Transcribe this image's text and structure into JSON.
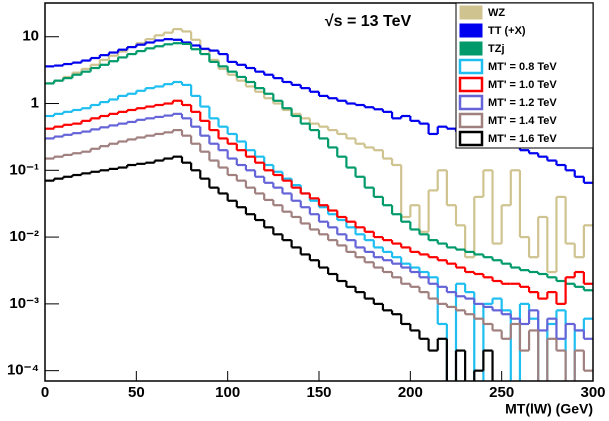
{
  "chart_data": {
    "type": "histogram",
    "annotation": "√s = 13 TeV",
    "x_label": "MT(lW) (GeV)",
    "bins": [
      0,
      5,
      10,
      15,
      20,
      25,
      30,
      35,
      40,
      45,
      50,
      55,
      60,
      65,
      70,
      75,
      80,
      85,
      90,
      95,
      100,
      105,
      110,
      115,
      120,
      125,
      130,
      135,
      140,
      145,
      150,
      155,
      160,
      165,
      170,
      175,
      180,
      185,
      190,
      195,
      200,
      205,
      210,
      215,
      220,
      225,
      230,
      235,
      240,
      245,
      250,
      255,
      260,
      265,
      270,
      275,
      280,
      285,
      290,
      295,
      300
    ],
    "xlim": [
      0,
      300
    ],
    "xticks": [
      0,
      50,
      100,
      150,
      200,
      250,
      300
    ],
    "ylim": [
      7e-05,
      32
    ],
    "yscale": "log",
    "yticks": [
      {
        "value": 0.0001,
        "label": "10⁻⁴"
      },
      {
        "value": 0.001,
        "label": "10⁻³"
      },
      {
        "value": 0.01,
        "label": "10⁻²"
      },
      {
        "value": 0.1,
        "label": "10⁻¹"
      },
      1,
      10
    ],
    "legend": "upper right",
    "series": [
      {
        "name": "WZ",
        "color": "#cfc38f",
        "legend_marker": "filled",
        "values": [
          2.0,
          2.2,
          2.5,
          2.9,
          3.3,
          3.8,
          4.5,
          5.2,
          6.0,
          7.0,
          8.0,
          9.2,
          10.5,
          11.5,
          13.0,
          12.0,
          9.0,
          6.5,
          4.5,
          3.3,
          2.7,
          2.2,
          1.8,
          1.5,
          1.2,
          1.0,
          0.8,
          0.7,
          0.6,
          0.5,
          0.45,
          0.4,
          0.35,
          0.3,
          0.25,
          0.22,
          0.2,
          0.15,
          0.12,
          0.02,
          0.03,
          0.012,
          0.05,
          0.1,
          0.03,
          0.015,
          0.005,
          0.04,
          0.1,
          0.008,
          0.03,
          0.1,
          0.01,
          0.005,
          0.02,
          0.003,
          0.04,
          0.008,
          0.005,
          0.015
        ]
      },
      {
        "name": "TT (+X)",
        "color": "#0000ee",
        "legend_marker": "filled",
        "values": [
          3.6,
          3.7,
          3.9,
          4.1,
          4.4,
          4.8,
          5.3,
          5.8,
          6.4,
          7.0,
          7.6,
          8.2,
          8.8,
          9.2,
          9.0,
          8.2,
          7.4,
          6.6,
          6.2,
          5.5,
          4.2,
          3.8,
          3.4,
          3.0,
          2.7,
          2.4,
          2.1,
          1.9,
          1.7,
          1.5,
          1.3,
          1.2,
          1.1,
          1.0,
          0.95,
          0.88,
          0.82,
          0.75,
          0.6,
          0.65,
          0.55,
          0.5,
          0.35,
          0.45,
          0.42,
          0.38,
          0.36,
          0.33,
          0.3,
          0.27,
          0.25,
          0.23,
          0.2,
          0.18,
          0.16,
          0.14,
          0.12,
          0.1,
          0.08,
          0.065
        ]
      },
      {
        "name": "TZj",
        "color": "#009a6a",
        "legend_marker": "filled",
        "values": [
          2.0,
          2.2,
          2.4,
          2.7,
          3.0,
          3.4,
          3.8,
          4.3,
          4.9,
          5.5,
          6.1,
          6.7,
          7.2,
          7.7,
          8.0,
          7.8,
          6.5,
          5.5,
          4.2,
          3.6,
          3.0,
          2.5,
          2.1,
          1.7,
          1.4,
          1.1,
          0.85,
          0.65,
          0.5,
          0.4,
          0.3,
          0.22,
          0.16,
          0.11,
          0.08,
          0.055,
          0.04,
          0.03,
          0.022,
          0.017,
          0.013,
          0.011,
          0.009,
          0.008,
          0.007,
          0.0065,
          0.006,
          0.0055,
          0.005,
          0.0045,
          0.004,
          0.0035,
          0.0032,
          0.003,
          0.0028,
          0.0025,
          0.0022,
          0.002,
          0.0018,
          0.0016
        ]
      },
      {
        "name": "MT' = 0.8 TeV",
        "color": "#1ebff0",
        "legend_marker": "outline",
        "values": [
          0.65,
          0.7,
          0.75,
          0.8,
          0.85,
          0.95,
          1.05,
          1.15,
          1.3,
          1.4,
          1.55,
          1.7,
          1.8,
          1.95,
          2.1,
          1.9,
          1.3,
          0.9,
          0.6,
          0.45,
          0.35,
          0.27,
          0.2,
          0.16,
          0.12,
          0.095,
          0.075,
          0.06,
          0.045,
          0.035,
          0.028,
          0.022,
          0.018,
          0.014,
          0.011,
          0.009,
          0.007,
          0.006,
          0.005,
          0.004,
          0.0035,
          0.003,
          0.0025,
          0.0005,
          0,
          0.002,
          0.0015,
          0,
          0.001,
          0.0012,
          0.0008,
          0,
          0.001,
          0.0006,
          0,
          0.0005,
          0.0008,
          0,
          0.0004,
          0.0006
        ]
      },
      {
        "name": "MT' = 1.0 TeV",
        "color": "#ff0000",
        "legend_marker": "outline",
        "values": [
          0.42,
          0.45,
          0.48,
          0.5,
          0.55,
          0.6,
          0.65,
          0.7,
          0.75,
          0.8,
          0.85,
          0.9,
          0.95,
          1.0,
          1.1,
          0.95,
          0.75,
          0.55,
          0.4,
          0.3,
          0.25,
          0.2,
          0.16,
          0.13,
          0.1,
          0.085,
          0.07,
          0.055,
          0.045,
          0.038,
          0.03,
          0.025,
          0.02,
          0.017,
          0.014,
          0.012,
          0.01,
          0.009,
          0.008,
          0.007,
          0.006,
          0.0055,
          0.005,
          0.0045,
          0.004,
          0.0035,
          0.003,
          0.0028,
          0.0025,
          0.0022,
          0.002,
          0.002,
          0.0018,
          0.0015,
          0.0012,
          0.0015,
          0.001,
          0.0025,
          0.003,
          0.002
        ]
      },
      {
        "name": "MT' = 1.2 TeV",
        "color": "#6464d8",
        "legend_marker": "outline",
        "values": [
          0.3,
          0.32,
          0.34,
          0.36,
          0.38,
          0.41,
          0.44,
          0.47,
          0.5,
          0.53,
          0.57,
          0.6,
          0.63,
          0.66,
          0.7,
          0.6,
          0.45,
          0.33,
          0.25,
          0.2,
          0.15,
          0.12,
          0.1,
          0.08,
          0.065,
          0.055,
          0.045,
          0.035,
          0.028,
          0.022,
          0.017,
          0.014,
          0.011,
          0.009,
          0.007,
          0.006,
          0.005,
          0.0045,
          0.004,
          0.0035,
          0.003,
          0.0025,
          0.002,
          0.0018,
          0.0015,
          0.0013,
          0.0012,
          0.001,
          0.0009,
          0.0008,
          0.0007,
          0.0006,
          0.0005,
          0.0008,
          0.0004,
          0.0006,
          0.0003,
          0.0005,
          0.0004,
          0.0003
        ]
      },
      {
        "name": "MT' = 1.4 TeV",
        "color": "#a07f7f",
        "legend_marker": "outline",
        "values": [
          0.15,
          0.16,
          0.17,
          0.18,
          0.19,
          0.21,
          0.23,
          0.25,
          0.27,
          0.29,
          0.31,
          0.33,
          0.35,
          0.37,
          0.4,
          0.33,
          0.25,
          0.19,
          0.14,
          0.11,
          0.085,
          0.07,
          0.055,
          0.045,
          0.036,
          0.03,
          0.024,
          0.02,
          0.016,
          0.013,
          0.011,
          0.009,
          0.0075,
          0.006,
          0.005,
          0.0042,
          0.0035,
          0.003,
          0.0025,
          0.002,
          0.0018,
          0.0015,
          0.0012,
          0.001,
          0.0009,
          0.0008,
          0.0007,
          0.0006,
          0.0005,
          0.0004,
          0.0003,
          0.0005,
          0.0002,
          0.0004,
          0,
          0.0003,
          0.0002,
          0,
          0.0002,
          0.0001
        ]
      },
      {
        "name": "MT' = 1.6 TeV",
        "color": "#000000",
        "legend_marker": "outline",
        "values": [
          0.07,
          0.075,
          0.08,
          0.085,
          0.09,
          0.095,
          0.1,
          0.105,
          0.11,
          0.12,
          0.125,
          0.13,
          0.14,
          0.15,
          0.16,
          0.13,
          0.1,
          0.075,
          0.055,
          0.045,
          0.035,
          0.028,
          0.022,
          0.018,
          0.014,
          0.011,
          0.009,
          0.007,
          0.0055,
          0.0045,
          0.0035,
          0.0028,
          0.0022,
          0.0018,
          0.0015,
          0.0012,
          0.001,
          0.0008,
          0.0007,
          0.0005,
          0.0004,
          0.0003,
          0.0002,
          0.0003,
          0,
          0.0002,
          0,
          0.0001,
          0.0002,
          0,
          0,
          0,
          0,
          0,
          0,
          0,
          0,
          0,
          0,
          0
        ]
      }
    ]
  }
}
